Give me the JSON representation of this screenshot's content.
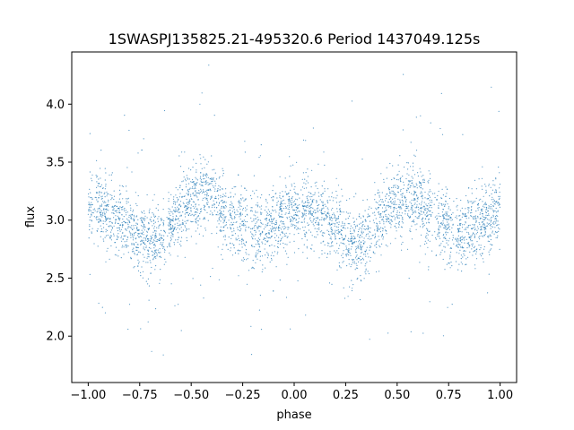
{
  "chart_data": {
    "type": "scatter",
    "title": "1SWASPJ135825.21-495320.6 Period 1437049.125s",
    "xlabel": "phase",
    "ylabel": "flux",
    "xlim": [
      -1.08,
      1.08
    ],
    "ylim": [
      1.6,
      4.45
    ],
    "xticks": [
      -1.0,
      -0.75,
      -0.5,
      -0.25,
      0.0,
      0.25,
      0.5,
      0.75,
      1.0
    ],
    "xtick_labels": [
      "−1.00",
      "−0.75",
      "−0.50",
      "−0.25",
      "0.00",
      "0.25",
      "0.50",
      "0.75",
      "1.00"
    ],
    "yticks": [
      2.0,
      2.5,
      3.0,
      3.5,
      4.0
    ],
    "ytick_labels": [
      "2.0",
      "2.5",
      "3.0",
      "3.5",
      "4.0"
    ],
    "grid": false,
    "point_color": "#1f77b4",
    "series": [
      {
        "profile": {
          "phase": [
            0.0,
            0.05,
            0.1,
            0.15,
            0.2,
            0.25,
            0.3,
            0.35,
            0.4,
            0.45,
            0.5,
            0.55,
            0.6,
            0.65,
            0.7,
            0.75,
            0.8,
            0.85,
            0.9,
            0.95,
            1.0
          ],
          "flux": [
            3.12,
            3.1,
            3.05,
            3.0,
            2.95,
            2.85,
            2.82,
            2.85,
            2.95,
            3.1,
            3.15,
            3.2,
            3.2,
            3.05,
            3.0,
            2.95,
            2.88,
            2.9,
            2.95,
            3.0,
            3.12
          ]
        },
        "scatter_sd": 0.15,
        "gap_phases": [
          -0.97,
          -0.62,
          -0.32,
          -0.22,
          0.03,
          0.38,
          0.68,
          0.78
        ]
      }
    ]
  }
}
